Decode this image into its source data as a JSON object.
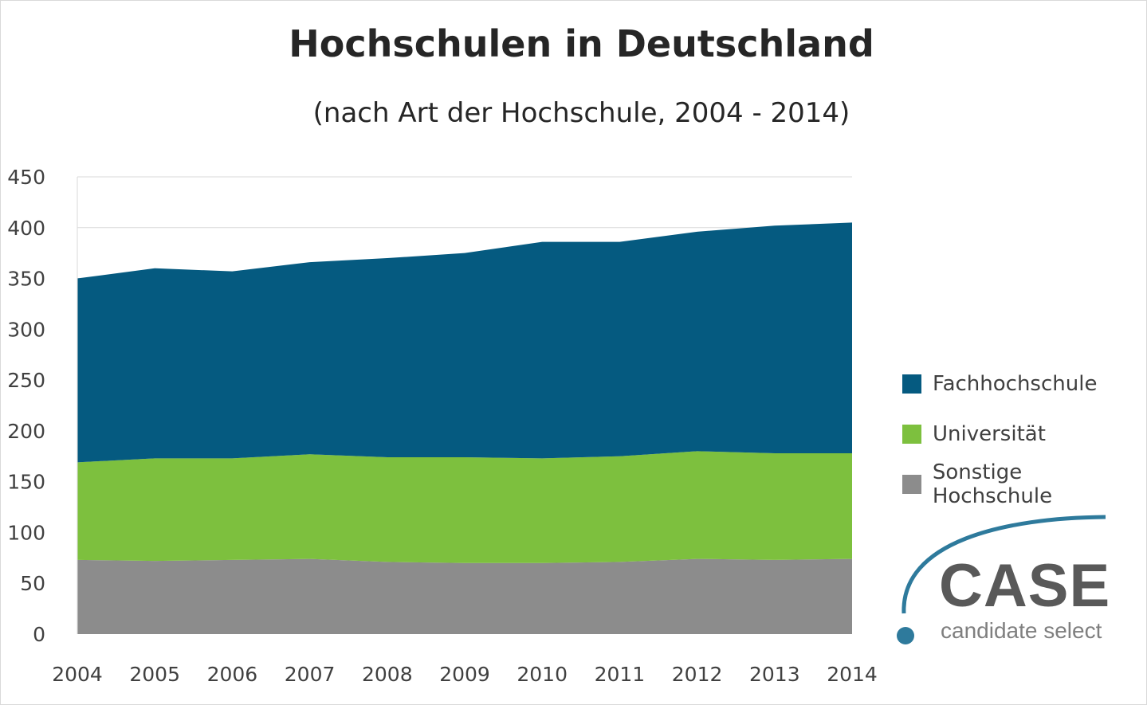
{
  "chart_data": {
    "type": "area",
    "stacked": true,
    "title": "Hochschulen in Deutschland",
    "subtitle": "(nach Art der Hochschule, 2004 - 2014)",
    "xlabel": "",
    "ylabel": "",
    "categories": [
      "2004",
      "2005",
      "2006",
      "2007",
      "2008",
      "2009",
      "2010",
      "2011",
      "2012",
      "2013",
      "2014"
    ],
    "ylim": [
      0,
      450
    ],
    "yticks": [
      "0",
      "50",
      "100",
      "150",
      "200",
      "250",
      "300",
      "350",
      "400",
      "450"
    ],
    "grid": true,
    "legend_position": "right",
    "series": [
      {
        "name": "Sonstige Hochschule",
        "color": "#8c8c8c",
        "values": [
          73,
          72,
          73,
          74,
          71,
          70,
          70,
          71,
          74,
          73,
          74
        ]
      },
      {
        "name": "Universität",
        "color": "#7dc03e",
        "values": [
          96,
          101,
          100,
          103,
          103,
          104,
          103,
          104,
          106,
          105,
          104
        ]
      },
      {
        "name": "Fachhochschule",
        "color": "#055a80",
        "values": [
          181,
          187,
          184,
          189,
          196,
          201,
          213,
          211,
          216,
          224,
          227
        ]
      }
    ]
  },
  "legend": [
    "Fachhochschule",
    "Universität",
    "Sonstige Hochschule"
  ],
  "logo": {
    "name": "CASE",
    "tagline": "candidate select",
    "arc_color": "#2e7a9c"
  }
}
